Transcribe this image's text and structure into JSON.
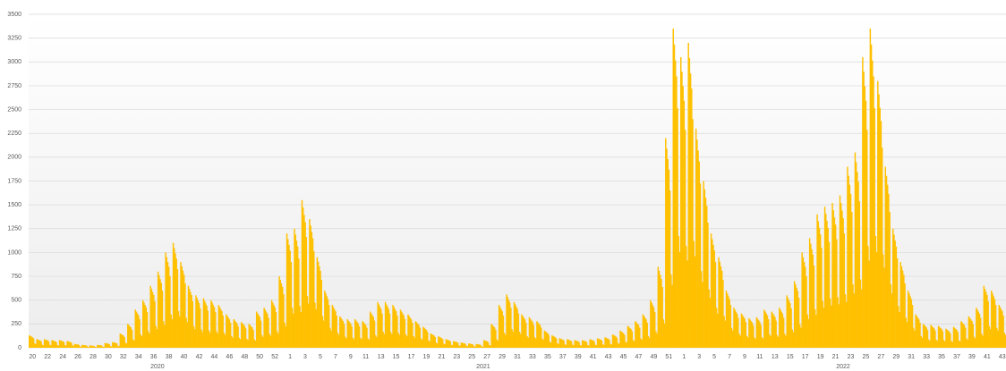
{
  "chart_data": {
    "type": "bar",
    "color": "#FFC000",
    "grid": true,
    "ylim": [
      0,
      3500
    ],
    "yticks": [
      0,
      250,
      500,
      750,
      1000,
      1250,
      1500,
      1750,
      2000,
      2250,
      2500,
      2750,
      3000,
      3250,
      3500
    ],
    "years": [
      "2020",
      "2021",
      "2022"
    ],
    "categories": [
      20,
      null,
      22,
      null,
      24,
      null,
      26,
      null,
      28,
      null,
      30,
      null,
      32,
      null,
      34,
      null,
      36,
      null,
      38,
      null,
      40,
      null,
      42,
      null,
      44,
      null,
      46,
      null,
      48,
      null,
      50,
      null,
      52,
      null,
      1,
      null,
      3,
      null,
      5,
      null,
      7,
      null,
      9,
      null,
      11,
      null,
      13,
      null,
      15,
      null,
      17,
      null,
      19,
      null,
      21,
      null,
      23,
      null,
      25,
      null,
      27,
      null,
      29,
      null,
      31,
      null,
      33,
      null,
      35,
      null,
      37,
      null,
      39,
      null,
      41,
      null,
      43,
      null,
      45,
      null,
      47,
      null,
      49,
      null,
      51,
      null,
      1,
      null,
      3,
      null,
      5,
      null,
      7,
      null,
      9,
      null,
      11,
      null,
      13,
      null,
      15,
      null,
      17,
      null,
      19,
      null,
      21,
      null,
      23,
      null,
      25,
      null,
      27,
      null,
      29,
      null,
      31,
      null,
      33,
      null,
      35,
      null,
      37,
      null,
      39,
      null,
      41,
      null,
      43
    ],
    "values": [
      [
        130,
        124,
        117,
        110,
        98,
        46,
        39
      ],
      [
        90,
        86,
        81,
        77,
        68,
        32,
        27
      ],
      [
        90,
        86,
        81,
        77,
        68,
        32,
        27
      ],
      [
        80,
        76,
        72,
        68,
        60,
        28,
        24
      ],
      [
        80,
        76,
        72,
        68,
        60,
        28,
        24
      ],
      [
        70,
        67,
        63,
        60,
        53,
        25,
        21
      ],
      [
        40,
        38,
        36,
        34,
        30,
        14,
        12
      ],
      [
        30,
        29,
        27,
        26,
        23,
        11,
        9
      ],
      [
        25,
        24,
        23,
        21,
        19,
        9,
        8
      ],
      [
        30,
        29,
        27,
        26,
        23,
        11,
        9
      ],
      [
        50,
        48,
        45,
        43,
        38,
        18,
        15
      ],
      [
        60,
        57,
        54,
        51,
        45,
        21,
        18
      ],
      [
        150,
        143,
        135,
        128,
        113,
        53,
        45
      ],
      [
        250,
        238,
        225,
        213,
        188,
        88,
        75
      ],
      [
        400,
        380,
        360,
        340,
        300,
        140,
        120
      ],
      [
        500,
        475,
        450,
        425,
        375,
        175,
        150
      ],
      [
        650,
        618,
        585,
        553,
        488,
        228,
        195
      ],
      [
        800,
        760,
        720,
        680,
        600,
        280,
        240
      ],
      [
        1000,
        950,
        900,
        850,
        750,
        350,
        300
      ],
      [
        1100,
        1045,
        990,
        935,
        825,
        385,
        330
      ],
      [
        900,
        855,
        810,
        765,
        675,
        315,
        270
      ],
      [
        650,
        618,
        585,
        553,
        488,
        228,
        195
      ],
      [
        550,
        523,
        495,
        468,
        413,
        193,
        165
      ],
      [
        520,
        494,
        468,
        442,
        390,
        182,
        156
      ],
      [
        500,
        475,
        450,
        425,
        375,
        175,
        150
      ],
      [
        450,
        428,
        405,
        383,
        338,
        158,
        135
      ],
      [
        350,
        333,
        315,
        298,
        263,
        123,
        105
      ],
      [
        300,
        285,
        270,
        255,
        225,
        105,
        90
      ],
      [
        270,
        257,
        243,
        230,
        203,
        95,
        81
      ],
      [
        250,
        238,
        225,
        213,
        188,
        88,
        75
      ],
      [
        380,
        361,
        342,
        323,
        285,
        133,
        114
      ],
      [
        420,
        399,
        378,
        357,
        315,
        147,
        126
      ],
      [
        500,
        475,
        450,
        425,
        375,
        175,
        150
      ],
      [
        750,
        713,
        675,
        638,
        563,
        263,
        225
      ],
      [
        1200,
        1140,
        1080,
        1020,
        900,
        420,
        360
      ],
      [
        1250,
        1188,
        1125,
        1063,
        938,
        438,
        375
      ],
      [
        1550,
        1473,
        1395,
        1318,
        1163,
        543,
        465
      ],
      [
        1350,
        1283,
        1215,
        1148,
        1013,
        473,
        405
      ],
      [
        950,
        903,
        855,
        808,
        713,
        333,
        285
      ],
      [
        600,
        570,
        540,
        510,
        450,
        210,
        180
      ],
      [
        450,
        428,
        405,
        383,
        338,
        158,
        135
      ],
      [
        330,
        314,
        297,
        281,
        248,
        116,
        99
      ],
      [
        300,
        285,
        270,
        255,
        225,
        105,
        90
      ],
      [
        300,
        285,
        270,
        255,
        225,
        105,
        90
      ],
      [
        280,
        266,
        252,
        238,
        210,
        98,
        84
      ],
      [
        380,
        361,
        342,
        323,
        285,
        133,
        114
      ],
      [
        480,
        456,
        432,
        408,
        360,
        168,
        144
      ],
      [
        480,
        456,
        432,
        408,
        360,
        168,
        144
      ],
      [
        450,
        428,
        405,
        383,
        338,
        158,
        135
      ],
      [
        400,
        380,
        360,
        340,
        300,
        140,
        120
      ],
      [
        350,
        333,
        315,
        298,
        263,
        123,
        105
      ],
      [
        280,
        266,
        252,
        238,
        210,
        98,
        84
      ],
      [
        220,
        209,
        198,
        187,
        165,
        77,
        66
      ],
      [
        150,
        143,
        135,
        128,
        113,
        53,
        45
      ],
      [
        120,
        114,
        108,
        102,
        90,
        42,
        36
      ],
      [
        90,
        86,
        81,
        77,
        68,
        32,
        27
      ],
      [
        70,
        67,
        63,
        60,
        53,
        25,
        21
      ],
      [
        55,
        52,
        50,
        47,
        41,
        19,
        17
      ],
      [
        45,
        43,
        41,
        38,
        34,
        16,
        14
      ],
      [
        40,
        38,
        36,
        34,
        30,
        14,
        12
      ],
      [
        80,
        76,
        72,
        68,
        60,
        28,
        24
      ],
      [
        250,
        238,
        225,
        213,
        188,
        88,
        75
      ],
      [
        450,
        428,
        405,
        383,
        338,
        158,
        135
      ],
      [
        560,
        532,
        504,
        476,
        420,
        196,
        168
      ],
      [
        480,
        456,
        432,
        408,
        360,
        168,
        144
      ],
      [
        350,
        333,
        315,
        298,
        263,
        123,
        105
      ],
      [
        320,
        304,
        288,
        272,
        240,
        112,
        96
      ],
      [
        280,
        266,
        252,
        238,
        210,
        98,
        84
      ],
      [
        180,
        171,
        162,
        153,
        135,
        63,
        54
      ],
      [
        130,
        124,
        117,
        110,
        98,
        46,
        39
      ],
      [
        100,
        95,
        90,
        85,
        75,
        35,
        30
      ],
      [
        90,
        86,
        81,
        77,
        68,
        32,
        27
      ],
      [
        80,
        76,
        72,
        68,
        60,
        28,
        24
      ],
      [
        80,
        76,
        72,
        68,
        60,
        28,
        24
      ],
      [
        90,
        86,
        81,
        77,
        68,
        32,
        27
      ],
      [
        100,
        95,
        90,
        85,
        75,
        35,
        30
      ],
      [
        110,
        105,
        99,
        94,
        83,
        39,
        33
      ],
      [
        140,
        133,
        126,
        119,
        105,
        49,
        42
      ],
      [
        180,
        171,
        162,
        153,
        135,
        63,
        54
      ],
      [
        230,
        219,
        207,
        196,
        173,
        81,
        69
      ],
      [
        280,
        266,
        252,
        238,
        210,
        98,
        84
      ],
      [
        350,
        333,
        315,
        298,
        263,
        123,
        105
      ],
      [
        500,
        475,
        450,
        425,
        375,
        175,
        150
      ],
      [
        850,
        808,
        765,
        723,
        638,
        298,
        255
      ],
      [
        2200,
        2090,
        1980,
        1870,
        1650,
        770,
        660
      ],
      [
        3350,
        3183,
        3015,
        2848,
        2513,
        1173,
        1005
      ],
      [
        3050,
        2898,
        2745,
        2593,
        2288,
        1068,
        915
      ],
      [
        3200,
        3040,
        2880,
        2720,
        2400,
        1120,
        960
      ],
      [
        2300,
        2185,
        2070,
        1955,
        1725,
        805,
        690
      ],
      [
        1750,
        1663,
        1575,
        1488,
        1313,
        613,
        525
      ],
      [
        1200,
        1140,
        1080,
        1020,
        900,
        420,
        360
      ],
      [
        950,
        903,
        855,
        808,
        713,
        333,
        285
      ],
      [
        600,
        570,
        540,
        510,
        450,
        210,
        180
      ],
      [
        420,
        399,
        378,
        357,
        315,
        147,
        126
      ],
      [
        360,
        342,
        324,
        306,
        270,
        126,
        108
      ],
      [
        310,
        295,
        279,
        264,
        233,
        109,
        93
      ],
      [
        320,
        304,
        288,
        272,
        240,
        112,
        96
      ],
      [
        400,
        380,
        360,
        340,
        300,
        140,
        120
      ],
      [
        380,
        361,
        342,
        323,
        285,
        133,
        114
      ],
      [
        420,
        399,
        378,
        357,
        315,
        147,
        126
      ],
      [
        550,
        523,
        495,
        468,
        413,
        193,
        165
      ],
      [
        700,
        665,
        630,
        595,
        525,
        245,
        210
      ],
      [
        1000,
        950,
        900,
        850,
        750,
        350,
        300
      ],
      [
        1150,
        1093,
        1035,
        978,
        863,
        403,
        345
      ],
      [
        1400,
        1330,
        1260,
        1190,
        1050,
        490,
        420
      ],
      [
        1480,
        1406,
        1332,
        1258,
        1110,
        518,
        444
      ],
      [
        1520,
        1444,
        1368,
        1292,
        1140,
        532,
        456
      ],
      [
        1600,
        1520,
        1440,
        1360,
        1200,
        560,
        480
      ],
      [
        1900,
        1805,
        1710,
        1615,
        1425,
        665,
        570
      ],
      [
        2050,
        1948,
        1845,
        1743,
        1538,
        718,
        615
      ],
      [
        3050,
        2898,
        2745,
        2593,
        2288,
        1068,
        915
      ],
      [
        3350,
        3183,
        3015,
        2848,
        2513,
        1173,
        1005
      ],
      [
        2800,
        2660,
        2520,
        2380,
        2100,
        980,
        840
      ],
      [
        1900,
        1805,
        1710,
        1615,
        1425,
        665,
        570
      ],
      [
        1250,
        1188,
        1125,
        1063,
        938,
        438,
        375
      ],
      [
        900,
        855,
        810,
        765,
        675,
        315,
        270
      ],
      [
        600,
        570,
        540,
        510,
        450,
        210,
        180
      ],
      [
        350,
        333,
        315,
        298,
        263,
        123,
        105
      ],
      [
        250,
        238,
        225,
        213,
        188,
        88,
        75
      ],
      [
        240,
        228,
        216,
        204,
        180,
        84,
        72
      ],
      [
        230,
        219,
        207,
        196,
        173,
        81,
        69
      ],
      [
        200,
        190,
        180,
        170,
        150,
        70,
        60
      ],
      [
        220,
        209,
        198,
        187,
        165,
        77,
        66
      ],
      [
        280,
        266,
        252,
        238,
        210,
        98,
        84
      ],
      [
        330,
        314,
        297,
        281,
        248,
        116,
        99
      ],
      [
        420,
        399,
        378,
        357,
        315,
        147,
        126
      ],
      [
        650,
        618,
        585,
        553,
        488,
        228,
        195
      ],
      [
        600,
        570,
        540,
        510,
        450,
        210,
        180
      ],
      [
        450,
        428,
        405,
        383,
        338,
        158,
        135
      ]
    ]
  }
}
